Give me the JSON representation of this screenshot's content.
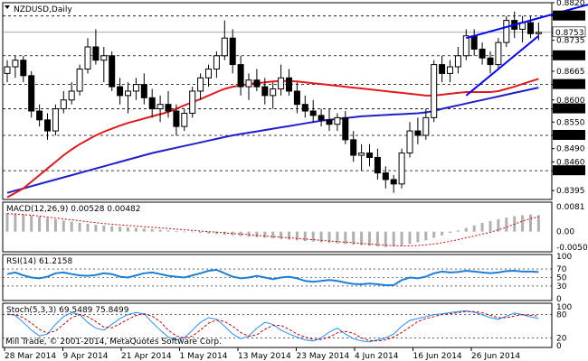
{
  "header": {
    "symbol_label": "NZDUSD,Daily"
  },
  "copyright": "Mill Trade, © 2001-2014, MetaQuotes Software Corp.",
  "colors": {
    "background": "#ffffff",
    "grid": "#000000",
    "candle": "#000000",
    "ma_fast": "#e31a1c",
    "ma_slow": "#1f1fcc",
    "channel": "#0000ff",
    "rsi": "#1e7fd6",
    "stoch_main": "#1e90ff",
    "stoch_signal": "#cc0000",
    "macd_hist": "#b0b0b0",
    "macd_signal": "#cc0000",
    "price_tag_bg": "#000000",
    "price_tag_fg": "#ffffff"
  },
  "chart_data": [
    {
      "type": "candlestick",
      "title": "NZDUSD,Daily",
      "ylim": [
        0.8375,
        0.882
      ],
      "y_ticks": [
        "0.8820",
        "0.8790",
        "0.8753",
        "0.8735",
        "0.8700",
        "0.8665",
        "0.8635",
        "0.8600",
        "0.8580",
        "0.8550",
        "0.8520",
        "0.8490",
        "0.8460",
        "0.8440",
        "0.8395"
      ],
      "highlighted_levels": [
        "0.8790",
        "0.8700",
        "0.8635",
        "0.8580",
        "0.8520",
        "0.8440"
      ],
      "current_price": "0.8753",
      "x_labels": [
        "28 Mar 2014",
        "9 Apr 2014",
        "21 Apr 2014",
        "1 May 2014",
        "13 May 2014",
        "23 May 2014",
        "4 Jun 2014",
        "16 Jun 2014",
        "26 Jun 2014"
      ],
      "ohlc": [
        [
          0.866,
          0.869,
          0.864,
          0.8675
        ],
        [
          0.8675,
          0.87,
          0.865,
          0.869
        ],
        [
          0.869,
          0.87,
          0.864,
          0.8655
        ],
        [
          0.8655,
          0.8665,
          0.856,
          0.8575
        ],
        [
          0.8575,
          0.859,
          0.854,
          0.8555
        ],
        [
          0.8555,
          0.857,
          0.851,
          0.853
        ],
        [
          0.853,
          0.859,
          0.852,
          0.858
        ],
        [
          0.858,
          0.862,
          0.857,
          0.86
        ],
        [
          0.86,
          0.864,
          0.859,
          0.862
        ],
        [
          0.862,
          0.868,
          0.861,
          0.867
        ],
        [
          0.867,
          0.874,
          0.866,
          0.872
        ],
        [
          0.872,
          0.876,
          0.868,
          0.869
        ],
        [
          0.869,
          0.872,
          0.864,
          0.87
        ],
        [
          0.87,
          0.871,
          0.862,
          0.863
        ],
        [
          0.863,
          0.865,
          0.859,
          0.861
        ],
        [
          0.861,
          0.864,
          0.857,
          0.862
        ],
        [
          0.862,
          0.865,
          0.86,
          0.8635
        ],
        [
          0.8635,
          0.866,
          0.859,
          0.8605
        ],
        [
          0.8605,
          0.8625,
          0.856,
          0.858
        ],
        [
          0.858,
          0.861,
          0.855,
          0.859
        ],
        [
          0.859,
          0.862,
          0.856,
          0.8575
        ],
        [
          0.8575,
          0.859,
          0.852,
          0.854
        ],
        [
          0.854,
          0.858,
          0.853,
          0.857
        ],
        [
          0.857,
          0.863,
          0.856,
          0.862
        ],
        [
          0.862,
          0.866,
          0.86,
          0.865
        ],
        [
          0.865,
          0.868,
          0.863,
          0.867
        ],
        [
          0.867,
          0.871,
          0.865,
          0.87
        ],
        [
          0.87,
          0.878,
          0.869,
          0.874
        ],
        [
          0.874,
          0.876,
          0.866,
          0.868
        ],
        [
          0.868,
          0.87,
          0.861,
          0.863
        ],
        [
          0.863,
          0.866,
          0.86,
          0.8645
        ],
        [
          0.8645,
          0.867,
          0.862,
          0.863
        ],
        [
          0.863,
          0.865,
          0.859,
          0.861
        ],
        [
          0.861,
          0.864,
          0.858,
          0.8625
        ],
        [
          0.8625,
          0.868,
          0.861,
          0.865
        ],
        [
          0.865,
          0.867,
          0.861,
          0.862
        ],
        [
          0.862,
          0.864,
          0.857,
          0.859
        ],
        [
          0.859,
          0.861,
          0.856,
          0.8575
        ],
        [
          0.8575,
          0.86,
          0.855,
          0.8565
        ],
        [
          0.8565,
          0.858,
          0.854,
          0.8555
        ],
        [
          0.8555,
          0.858,
          0.853,
          0.8545
        ],
        [
          0.8545,
          0.857,
          0.853,
          0.856
        ],
        [
          0.856,
          0.8575,
          0.85,
          0.851
        ],
        [
          0.851,
          0.853,
          0.846,
          0.8475
        ],
        [
          0.8475,
          0.85,
          0.844,
          0.848
        ],
        [
          0.848,
          0.85,
          0.845,
          0.847
        ],
        [
          0.847,
          0.849,
          0.842,
          0.8435
        ],
        [
          0.8435,
          0.845,
          0.84,
          0.842
        ],
        [
          0.842,
          0.843,
          0.839,
          0.841
        ],
        [
          0.841,
          0.849,
          0.84,
          0.848
        ],
        [
          0.848,
          0.855,
          0.847,
          0.853
        ],
        [
          0.853,
          0.856,
          0.85,
          0.852
        ],
        [
          0.852,
          0.858,
          0.851,
          0.856
        ],
        [
          0.856,
          0.869,
          0.855,
          0.868
        ],
        [
          0.868,
          0.87,
          0.864,
          0.866
        ],
        [
          0.866,
          0.869,
          0.864,
          0.8675
        ],
        [
          0.8675,
          0.872,
          0.866,
          0.87
        ],
        [
          0.87,
          0.876,
          0.869,
          0.8745
        ],
        [
          0.8745,
          0.876,
          0.87,
          0.8715
        ],
        [
          0.8715,
          0.873,
          0.868,
          0.8695
        ],
        [
          0.8695,
          0.871,
          0.866,
          0.868
        ],
        [
          0.868,
          0.874,
          0.867,
          0.873
        ],
        [
          0.873,
          0.879,
          0.872,
          0.878
        ],
        [
          0.878,
          0.88,
          0.874,
          0.876
        ],
        [
          0.876,
          0.879,
          0.873,
          0.8775
        ],
        [
          0.8775,
          0.879,
          0.874,
          0.875
        ],
        [
          0.875,
          0.8775,
          0.8735,
          0.8753
        ]
      ],
      "ma_slow": [
        0.839,
        0.8395,
        0.84,
        0.8405,
        0.841,
        0.8415,
        0.842,
        0.8425,
        0.843,
        0.8435,
        0.844,
        0.8445,
        0.845,
        0.8455,
        0.846,
        0.8465,
        0.847,
        0.8475,
        0.848,
        0.8484,
        0.8488,
        0.8492,
        0.8496,
        0.85,
        0.8504,
        0.8508,
        0.8512,
        0.8516,
        0.852,
        0.8523,
        0.8526,
        0.8529,
        0.8532,
        0.8535,
        0.8538,
        0.8541,
        0.8544,
        0.8547,
        0.855,
        0.8553,
        0.8555,
        0.8557,
        0.8559,
        0.8561,
        0.8563,
        0.8564,
        0.8565,
        0.8566,
        0.8567,
        0.8568,
        0.8569,
        0.857,
        0.8572,
        0.8575,
        0.858,
        0.8584,
        0.8588,
        0.8592,
        0.8596,
        0.86,
        0.8604,
        0.8608,
        0.8612,
        0.8616,
        0.862,
        0.8624,
        0.8628
      ],
      "ma_fast": [
        0.838,
        0.839,
        0.84,
        0.8415,
        0.843,
        0.8445,
        0.846,
        0.8475,
        0.8488,
        0.85,
        0.851,
        0.852,
        0.8528,
        0.8535,
        0.8542,
        0.8548,
        0.8553,
        0.8558,
        0.8563,
        0.8568,
        0.8573,
        0.858,
        0.8588,
        0.8595,
        0.8602,
        0.861,
        0.8618,
        0.8625,
        0.863,
        0.8633,
        0.8636,
        0.8638,
        0.864,
        0.8642,
        0.8643,
        0.8643,
        0.8642,
        0.864,
        0.8638,
        0.8636,
        0.8634,
        0.8632,
        0.863,
        0.8628,
        0.8626,
        0.8624,
        0.8622,
        0.862,
        0.8618,
        0.8616,
        0.8614,
        0.8612,
        0.861,
        0.861,
        0.8612,
        0.8614,
        0.8616,
        0.8618,
        0.8618,
        0.8618,
        0.8618,
        0.862,
        0.8625,
        0.863,
        0.8636,
        0.8642,
        0.8648
      ],
      "channel_lines": [
        {
          "from": [
            57,
            0.874
          ],
          "to": [
            73,
            0.882
          ]
        },
        {
          "from": [
            57,
            0.861
          ],
          "to": [
            66,
            0.8745
          ]
        }
      ]
    },
    {
      "type": "bar",
      "title": "MACD(12,26,9) 0.00528 0.00482",
      "ylim": [
        -0.0065,
        0.0095
      ],
      "y_ticks": [
        "0.0081",
        "0.00",
        "-0.00504"
      ],
      "histogram": [
        0.006,
        0.0058,
        0.0055,
        0.0052,
        0.0048,
        0.0044,
        0.004,
        0.0036,
        0.0032,
        0.0028,
        0.0025,
        0.0022,
        0.002,
        0.0018,
        0.0016,
        0.0014,
        0.0012,
        0.001,
        0.0008,
        0.0006,
        0.0004,
        0.0002,
        0.0,
        -0.0002,
        -0.0004,
        -0.0006,
        -0.0008,
        -0.001,
        -0.0012,
        -0.0014,
        -0.0016,
        -0.0018,
        -0.002,
        -0.0022,
        -0.0024,
        -0.0026,
        -0.0028,
        -0.003,
        -0.0032,
        -0.0034,
        -0.0036,
        -0.0038,
        -0.004,
        -0.0042,
        -0.0044,
        -0.0046,
        -0.0048,
        -0.005,
        -0.0048,
        -0.0045,
        -0.004,
        -0.0034,
        -0.0028,
        -0.002,
        -0.0012,
        -0.0004,
        0.0004,
        0.0012,
        0.002,
        0.0028,
        0.0034,
        0.004,
        0.0045,
        0.005,
        0.0053,
        0.0055,
        0.0053
      ],
      "signal": [
        0.0058,
        0.0057,
        0.0055,
        0.0053,
        0.005,
        0.0047,
        0.0044,
        0.0041,
        0.0038,
        0.0035,
        0.0032,
        0.0029,
        0.0026,
        0.0024,
        0.0022,
        0.002,
        0.0018,
        0.0016,
        0.0014,
        0.0012,
        0.001,
        0.0008,
        0.0006,
        0.0004,
        0.0002,
        0.0,
        -0.0002,
        -0.0004,
        -0.0006,
        -0.0008,
        -0.001,
        -0.0012,
        -0.0014,
        -0.0016,
        -0.0018,
        -0.002,
        -0.0022,
        -0.0024,
        -0.0026,
        -0.0028,
        -0.003,
        -0.0032,
        -0.0034,
        -0.0036,
        -0.0038,
        -0.004,
        -0.0042,
        -0.0044,
        -0.0045,
        -0.0046,
        -0.0046,
        -0.0045,
        -0.0043,
        -0.004,
        -0.0036,
        -0.0031,
        -0.0026,
        -0.002,
        -0.0014,
        -0.0008,
        -0.0002,
        0.0006,
        0.0014,
        0.0024,
        0.0034,
        0.0042,
        0.0048
      ]
    },
    {
      "type": "line",
      "title": "RSI(14) 61.2158",
      "ylim": [
        0,
        100
      ],
      "y_ticks": [
        "100",
        "70",
        "50",
        "30",
        "0"
      ],
      "levels": [
        70,
        50,
        30
      ],
      "values": [
        58,
        62,
        55,
        50,
        48,
        52,
        60,
        62,
        58,
        55,
        54,
        56,
        60,
        58,
        52,
        50,
        55,
        60,
        62,
        58,
        54,
        52,
        50,
        55,
        60,
        66,
        68,
        60,
        52,
        48,
        50,
        54,
        50,
        46,
        50,
        52,
        48,
        42,
        40,
        42,
        44,
        42,
        38,
        35,
        34,
        36,
        34,
        32,
        32,
        44,
        50,
        48,
        52,
        60,
        64,
        62,
        63,
        66,
        64,
        62,
        60,
        62,
        65,
        66,
        64,
        64,
        63
      ]
    },
    {
      "type": "line",
      "title": "Stoch(5,3,3) 69.5489 75.8499",
      "ylim": [
        0,
        100
      ],
      "y_ticks": [
        "100",
        "80",
        "20",
        "0"
      ],
      "levels": [
        80,
        20
      ],
      "main": [
        82,
        78,
        60,
        40,
        25,
        30,
        55,
        75,
        85,
        80,
        60,
        45,
        40,
        55,
        70,
        80,
        85,
        82,
        60,
        40,
        22,
        15,
        20,
        40,
        60,
        72,
        68,
        50,
        30,
        18,
        25,
        45,
        60,
        55,
        40,
        30,
        22,
        15,
        12,
        20,
        35,
        45,
        30,
        18,
        12,
        10,
        15,
        20,
        30,
        50,
        65,
        70,
        75,
        80,
        82,
        85,
        88,
        90,
        86,
        80,
        72,
        68,
        76,
        84,
        80,
        74,
        70
      ],
      "signal": [
        80,
        80,
        72,
        58,
        42,
        32,
        38,
        55,
        72,
        80,
        75,
        62,
        48,
        46,
        56,
        68,
        78,
        82,
        76,
        62,
        40,
        25,
        20,
        25,
        40,
        58,
        66,
        62,
        50,
        34,
        24,
        28,
        42,
        52,
        52,
        42,
        30,
        22,
        16,
        16,
        22,
        33,
        37,
        32,
        20,
        13,
        12,
        15,
        22,
        34,
        48,
        62,
        70,
        75,
        80,
        82,
        85,
        88,
        88,
        85,
        78,
        72,
        72,
        76,
        80,
        78,
        76
      ]
    }
  ]
}
